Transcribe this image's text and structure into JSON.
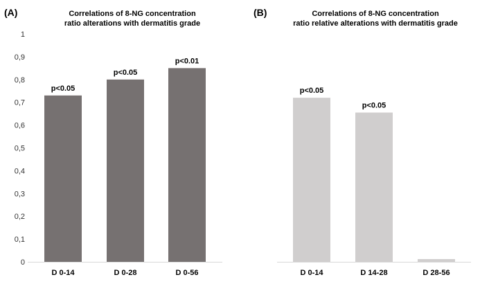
{
  "chart_data": [
    {
      "type": "bar",
      "panel_label": "(A)",
      "title_lines": [
        "Correlations  of 8-NG concentration",
        "ratio  alterations  with dermatitis  grade"
      ],
      "categories": [
        "D 0-14",
        "D 0-28",
        "D 0-56"
      ],
      "values": [
        0.73,
        0.8,
        0.85
      ],
      "data_labels": [
        "p<0.05",
        "p<0.05",
        "p<0.01"
      ],
      "color": "#767171",
      "ylim": [
        0,
        1
      ],
      "yticks": [
        "0",
        "0,1",
        "0,2",
        "0,3",
        "0,4",
        "0,5",
        "0,6",
        "0,7",
        "0,8",
        "0,9",
        "1"
      ],
      "grid": false
    },
    {
      "type": "bar",
      "panel_label": "(B)",
      "title_lines": [
        "Correlations  of 8-NG concentration",
        "ratio relative  alterations  with dermatitis  grade"
      ],
      "categories": [
        "D 0-14",
        "D 14-28",
        "D 28-56"
      ],
      "values": [
        0.72,
        0.655,
        0.012
      ],
      "data_labels": [
        "p<0.05",
        "p<0.05",
        ""
      ],
      "color": "#d0cece",
      "ylim": [
        0,
        1
      ],
      "grid": false
    }
  ]
}
